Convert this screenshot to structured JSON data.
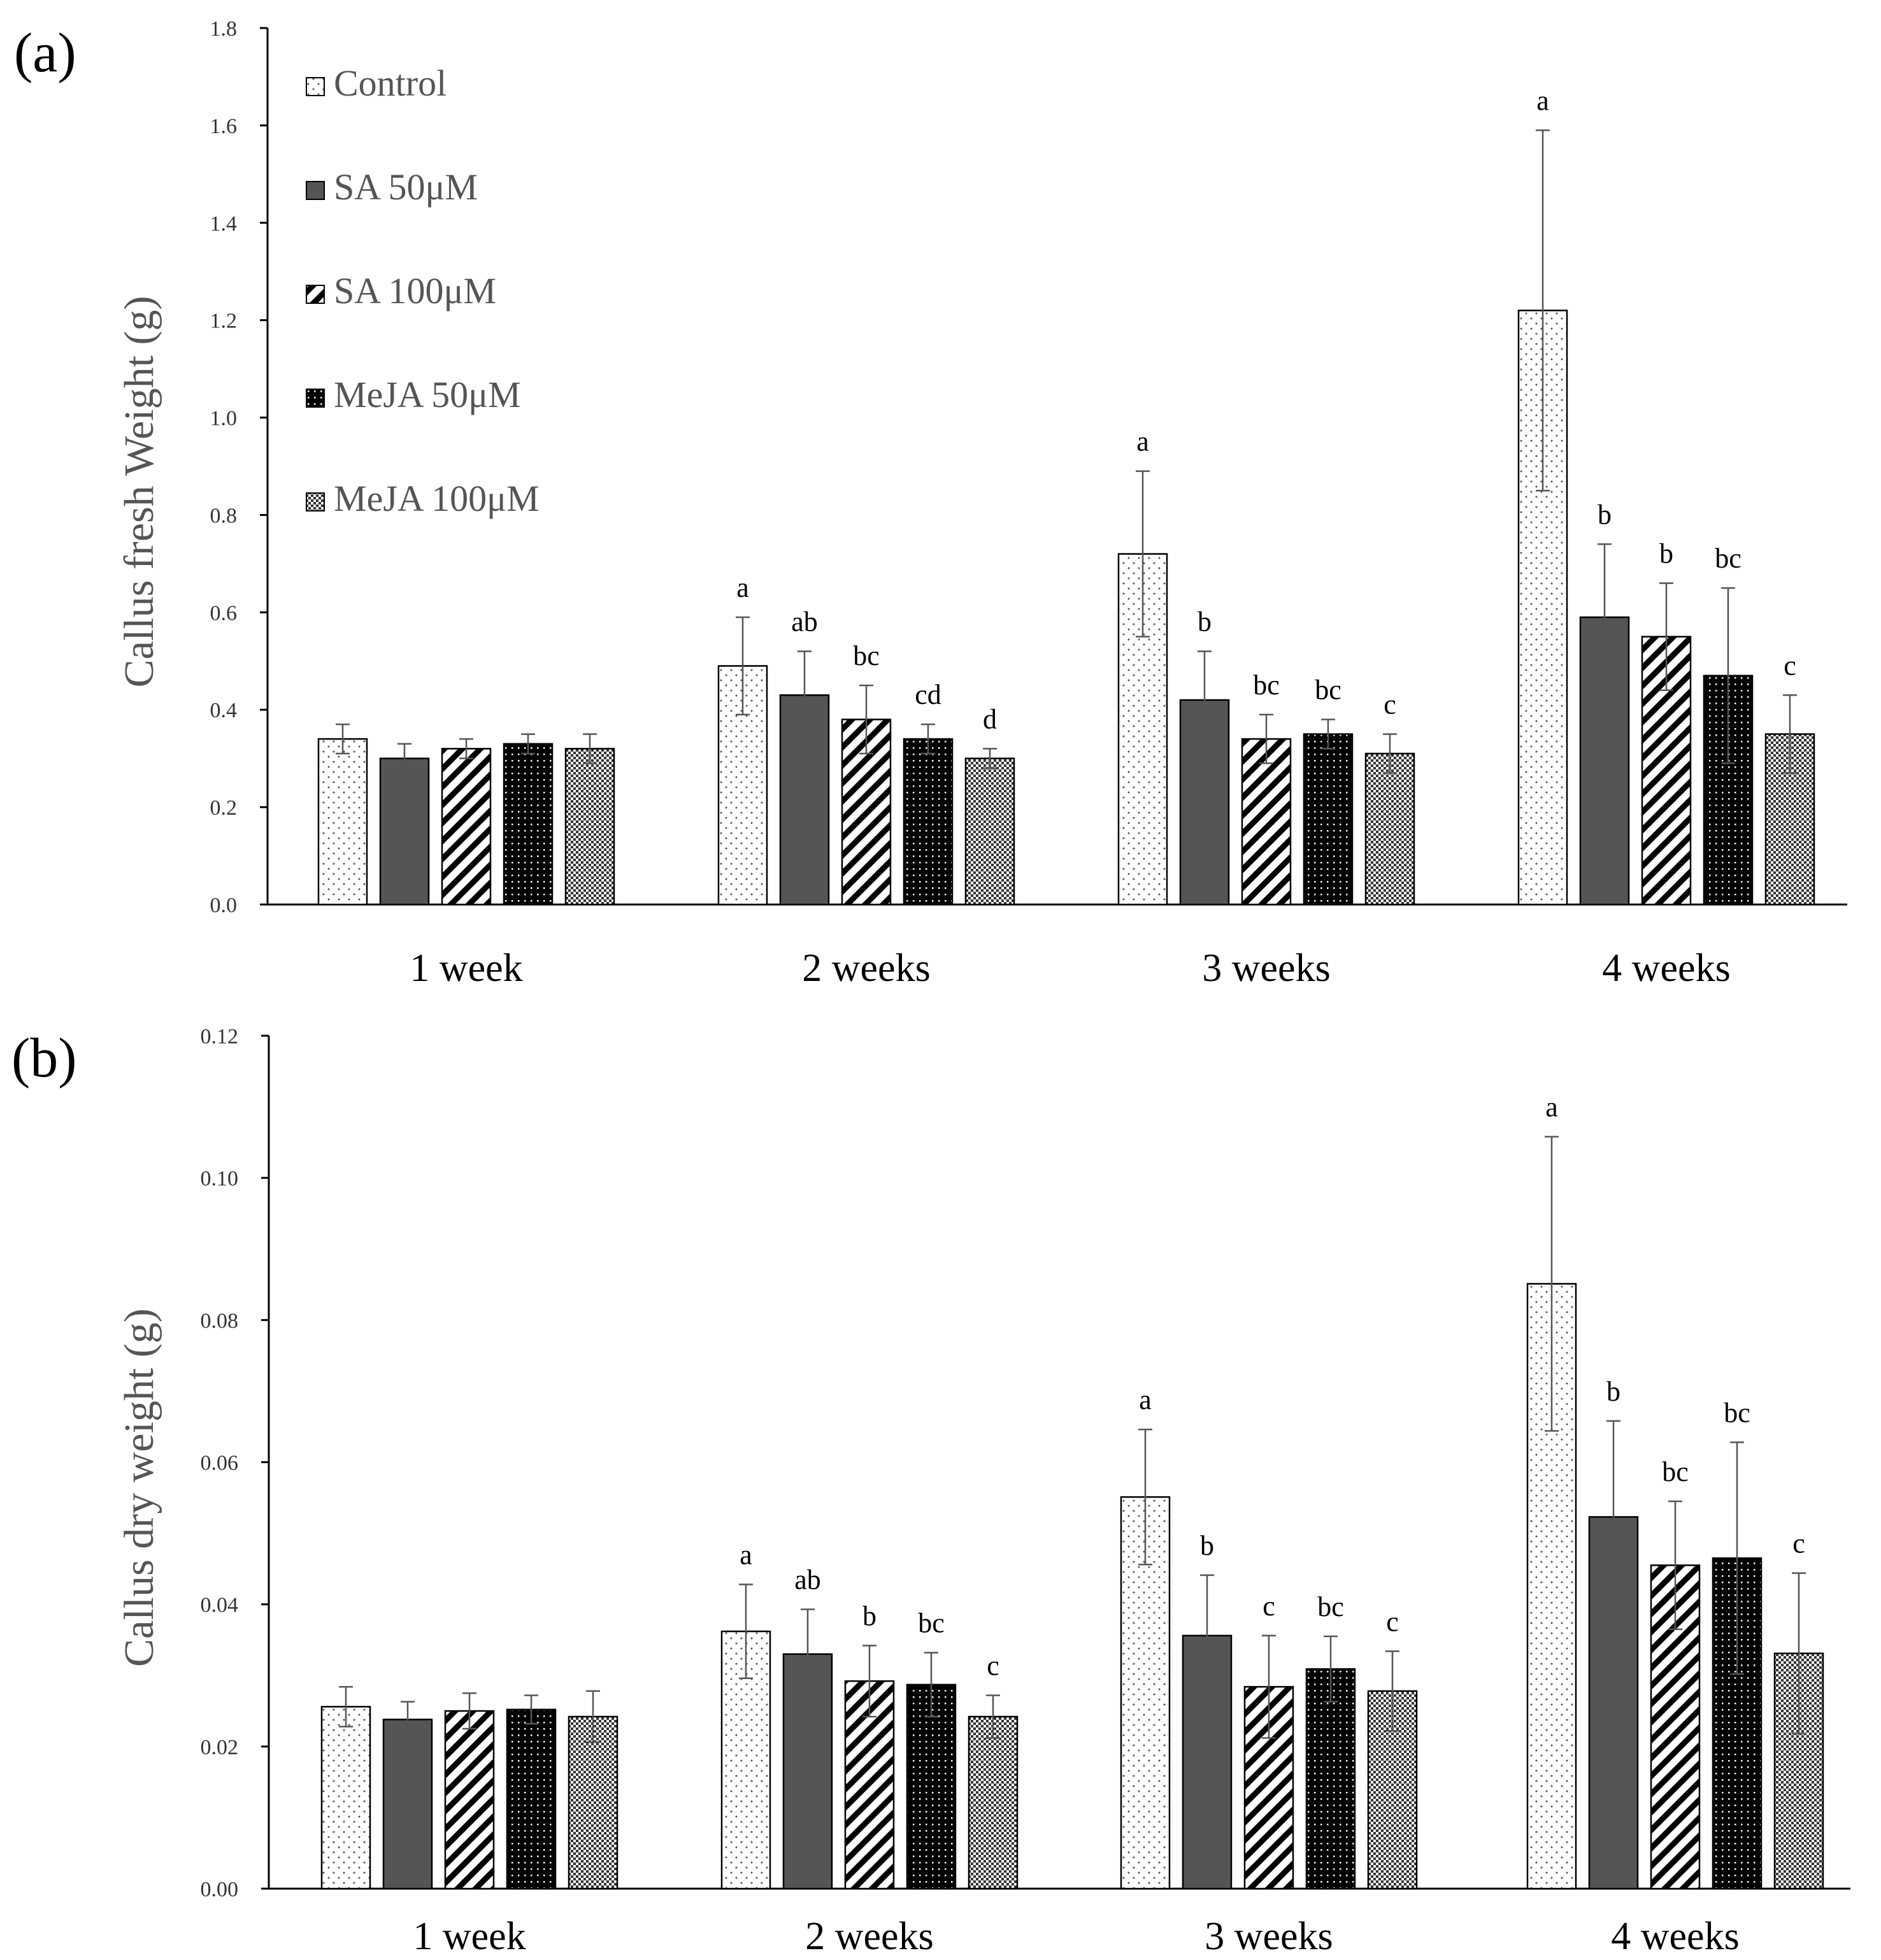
{
  "chart_data": [
    {
      "type": "bar",
      "panel_label": "(a)",
      "ylabel": "Callus fresh Weight (g)",
      "xlabel": "",
      "ylim": [
        0,
        1.8
      ],
      "yticks": [
        "0.0",
        "0.2",
        "0.4",
        "0.6",
        "0.8",
        "1.0",
        "1.2",
        "1.4",
        "1.6",
        "1.8"
      ],
      "categories": [
        "1 week",
        "2 weeks",
        "3 weeks",
        "4 weeks"
      ],
      "legend_position": "top-left",
      "series": [
        {
          "name": "Control",
          "pattern": "dots",
          "values": [
            0.34,
            0.49,
            0.72,
            1.22
          ],
          "errors": [
            0.03,
            0.1,
            0.17,
            0.37
          ],
          "letters": [
            "",
            "a",
            "a",
            "a"
          ]
        },
        {
          "name": "SA 50μM",
          "pattern": "solid-gray",
          "values": [
            0.3,
            0.43,
            0.42,
            0.59
          ],
          "errors": [
            0.03,
            0.09,
            0.1,
            0.15
          ],
          "letters": [
            "",
            "ab",
            "b",
            "b"
          ]
        },
        {
          "name": "SA 100μM",
          "pattern": "diagonal",
          "values": [
            0.32,
            0.38,
            0.34,
            0.55
          ],
          "errors": [
            0.02,
            0.07,
            0.05,
            0.11
          ],
          "letters": [
            "",
            "bc",
            "bc",
            "b"
          ]
        },
        {
          "name": "MeJA 50μM",
          "pattern": "black-dots",
          "values": [
            0.33,
            0.34,
            0.35,
            0.47
          ],
          "errors": [
            0.02,
            0.03,
            0.03,
            0.18
          ],
          "letters": [
            "",
            "cd",
            "bc",
            "bc"
          ]
        },
        {
          "name": "MeJA 100μM",
          "pattern": "checker",
          "values": [
            0.32,
            0.3,
            0.31,
            0.35
          ],
          "errors": [
            0.03,
            0.02,
            0.04,
            0.08
          ],
          "letters": [
            "",
            "d",
            "c",
            "c"
          ]
        }
      ]
    },
    {
      "type": "bar",
      "panel_label": "(b)",
      "ylabel": "Callus dry weight (g)",
      "xlabel": "",
      "ylim": [
        0,
        0.12
      ],
      "yticks": [
        "0.00",
        "0.02",
        "0.04",
        "0.06",
        "0.08",
        "0.10",
        "0.12"
      ],
      "categories": [
        "1 week",
        "2 weeks",
        "3 weeks",
        "4 weeks"
      ],
      "series": [
        {
          "name": "Control",
          "pattern": "dots",
          "values": [
            0.0256,
            0.0362,
            0.0551,
            0.0851
          ],
          "errors": [
            0.0028,
            0.0066,
            0.0095,
            0.0207
          ],
          "letters": [
            "",
            "a",
            "a",
            "a"
          ]
        },
        {
          "name": "SA 50μM",
          "pattern": "solid-gray",
          "values": [
            0.0238,
            0.033,
            0.0356,
            0.0523
          ],
          "errors": [
            0.0025,
            0.0063,
            0.0085,
            0.0135
          ],
          "letters": [
            "",
            "ab",
            "b",
            "b"
          ]
        },
        {
          "name": "SA 100μM",
          "pattern": "diagonal",
          "values": [
            0.025,
            0.0292,
            0.0284,
            0.0455
          ],
          "errors": [
            0.0025,
            0.005,
            0.0072,
            0.009
          ],
          "letters": [
            "",
            "b",
            "c",
            "bc"
          ]
        },
        {
          "name": "MeJA 50μM",
          "pattern": "black-dots",
          "values": [
            0.0252,
            0.0287,
            0.0309,
            0.0465
          ],
          "errors": [
            0.002,
            0.0045,
            0.0046,
            0.0163
          ],
          "letters": [
            "",
            "bc",
            "bc",
            "bc"
          ]
        },
        {
          "name": "MeJA 100μM",
          "pattern": "checker",
          "values": [
            0.0242,
            0.0242,
            0.0278,
            0.0331
          ],
          "errors": [
            0.0036,
            0.003,
            0.0056,
            0.0113
          ],
          "letters": [
            "",
            "c",
            "c",
            "c"
          ]
        }
      ]
    }
  ]
}
